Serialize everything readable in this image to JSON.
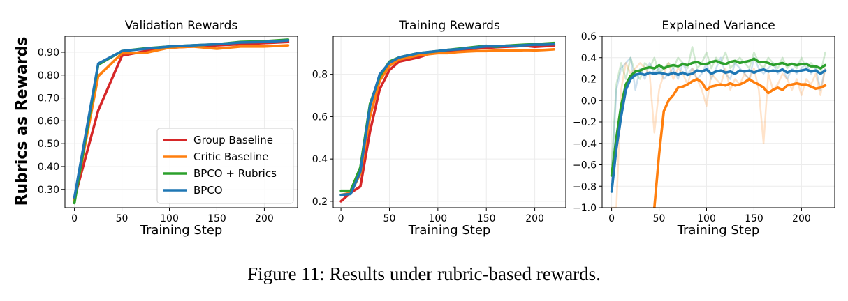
{
  "figure": {
    "caption": "Figure 11: Results under rubric-based rewards.",
    "row_ylabel": "Rubrics as Rewards"
  },
  "legend": {
    "placement": "lower-right",
    "entries": [
      {
        "name": "Group Baseline",
        "color": "#d62728"
      },
      {
        "name": "Critic Baseline",
        "color": "#ff7f0e"
      },
      {
        "name": "BPCO + Rubrics",
        "color": "#2ca02c"
      },
      {
        "name": "BPCO",
        "color": "#1f77b4"
      }
    ]
  },
  "chart_data": [
    {
      "type": "line",
      "title": "Validation Rewards",
      "xlabel": "Training Step",
      "ylabel": "",
      "xlim": [
        -10,
        235
      ],
      "ylim": [
        0.22,
        0.97
      ],
      "xticks": [
        0,
        50,
        100,
        150,
        200
      ],
      "yticks": [
        0.3,
        0.4,
        0.5,
        0.6,
        0.7,
        0.8,
        0.9
      ],
      "ytick_labels": [
        "0.30",
        "0.40",
        "0.50",
        "0.60",
        "0.70",
        "0.80",
        "0.90"
      ],
      "grid": true,
      "x": [
        0,
        25,
        50,
        75,
        100,
        125,
        150,
        175,
        200,
        225
      ],
      "series": [
        {
          "name": "Group Baseline",
          "color": "#d62728",
          "values": [
            0.26,
            0.645,
            0.885,
            0.905,
            0.92,
            0.925,
            0.93,
            0.935,
            0.94,
            0.945
          ]
        },
        {
          "name": "Critic Baseline",
          "color": "#ff7f0e",
          "values": [
            0.25,
            0.795,
            0.895,
            0.897,
            0.92,
            0.925,
            0.915,
            0.925,
            0.925,
            0.93
          ]
        },
        {
          "name": "BPCO + Rubrics",
          "color": "#2ca02c",
          "values": [
            0.24,
            0.845,
            0.905,
            0.917,
            0.925,
            0.93,
            0.935,
            0.945,
            0.948,
            0.955
          ]
        },
        {
          "name": "BPCO",
          "color": "#1f77b4",
          "values": [
            0.265,
            0.85,
            0.905,
            0.915,
            0.925,
            0.93,
            0.935,
            0.943,
            0.945,
            0.952
          ]
        }
      ]
    },
    {
      "type": "line",
      "title": "Training Rewards",
      "xlabel": "Training Step",
      "ylabel": "",
      "xlim": [
        -8,
        232
      ],
      "ylim": [
        0.17,
        0.98
      ],
      "xticks": [
        0,
        50,
        100,
        150,
        200
      ],
      "yticks": [
        0.2,
        0.4,
        0.6,
        0.8
      ],
      "ytick_labels": [
        "0.2",
        "0.4",
        "0.6",
        "0.8"
      ],
      "grid": true,
      "x": [
        0,
        10,
        20,
        30,
        40,
        50,
        60,
        70,
        80,
        90,
        100,
        110,
        120,
        130,
        140,
        150,
        160,
        170,
        180,
        190,
        200,
        210,
        220
      ],
      "series": [
        {
          "name": "Group Baseline",
          "color": "#d62728",
          "values": [
            0.2,
            0.24,
            0.27,
            0.53,
            0.73,
            0.82,
            0.86,
            0.87,
            0.88,
            0.895,
            0.905,
            0.91,
            0.915,
            0.918,
            0.922,
            0.925,
            0.928,
            0.93,
            0.932,
            0.935,
            0.93,
            0.933,
            0.935
          ]
        },
        {
          "name": "Critic Baseline",
          "color": "#ff7f0e",
          "values": [
            0.23,
            0.24,
            0.33,
            0.6,
            0.77,
            0.84,
            0.87,
            0.88,
            0.89,
            0.895,
            0.9,
            0.9,
            0.905,
            0.908,
            0.91,
            0.91,
            0.912,
            0.912,
            0.912,
            0.914,
            0.913,
            0.915,
            0.918
          ]
        },
        {
          "name": "BPCO + Rubrics",
          "color": "#2ca02c",
          "values": [
            0.25,
            0.25,
            0.36,
            0.66,
            0.79,
            0.86,
            0.88,
            0.89,
            0.9,
            0.905,
            0.91,
            0.915,
            0.92,
            0.925,
            0.93,
            0.935,
            0.93,
            0.935,
            0.938,
            0.94,
            0.942,
            0.945,
            0.948
          ]
        },
        {
          "name": "BPCO",
          "color": "#1f77b4",
          "values": [
            0.23,
            0.235,
            0.34,
            0.65,
            0.8,
            0.855,
            0.88,
            0.89,
            0.9,
            0.905,
            0.91,
            0.915,
            0.918,
            0.922,
            0.928,
            0.932,
            0.932,
            0.935,
            0.935,
            0.938,
            0.94,
            0.94,
            0.942
          ]
        }
      ]
    },
    {
      "type": "line",
      "title": "Explained Variance",
      "xlabel": "Training Step",
      "ylabel": "",
      "xlim": [
        -10,
        235
      ],
      "ylim": [
        -1.0,
        0.6
      ],
      "xticks": [
        0,
        50,
        100,
        150,
        200
      ],
      "yticks": [
        -1.0,
        -0.8,
        -0.6,
        -0.4,
        -0.2,
        0.0,
        0.2,
        0.4,
        0.6
      ],
      "ytick_labels": [
        "−1.0",
        "−0.8",
        "−0.6",
        "−0.4",
        "−0.2",
        "0.0",
        "0.2",
        "0.4",
        "0.6"
      ],
      "grid": true,
      "x": [
        0,
        5,
        10,
        15,
        20,
        25,
        30,
        35,
        40,
        45,
        50,
        55,
        60,
        65,
        70,
        75,
        80,
        85,
        90,
        95,
        100,
        105,
        110,
        115,
        120,
        125,
        130,
        135,
        140,
        145,
        150,
        155,
        160,
        165,
        170,
        175,
        180,
        185,
        190,
        195,
        200,
        205,
        210,
        215,
        220,
        225
      ],
      "series": [
        {
          "name": "BPCO + Rubrics",
          "color": "#2ca02c",
          "values": [
            -0.7,
            -0.35,
            -0.05,
            0.15,
            0.23,
            0.27,
            0.28,
            0.3,
            0.31,
            0.3,
            0.33,
            0.3,
            0.32,
            0.33,
            0.32,
            0.34,
            0.33,
            0.35,
            0.36,
            0.34,
            0.34,
            0.36,
            0.37,
            0.35,
            0.34,
            0.36,
            0.37,
            0.35,
            0.36,
            0.37,
            0.39,
            0.36,
            0.36,
            0.35,
            0.33,
            0.34,
            0.35,
            0.33,
            0.34,
            0.33,
            0.34,
            0.34,
            0.32,
            0.32,
            0.3,
            0.33
          ]
        },
        {
          "name": "BPCO",
          "color": "#1f77b4",
          "values": [
            -0.85,
            -0.45,
            -0.15,
            0.1,
            0.2,
            0.24,
            0.25,
            0.24,
            0.26,
            0.25,
            0.26,
            0.25,
            0.24,
            0.26,
            0.24,
            0.26,
            0.24,
            0.25,
            0.28,
            0.27,
            0.29,
            0.25,
            0.27,
            0.28,
            0.26,
            0.27,
            0.25,
            0.28,
            0.27,
            0.28,
            0.26,
            0.28,
            0.29,
            0.27,
            0.28,
            0.27,
            0.29,
            0.26,
            0.28,
            0.27,
            0.28,
            0.29,
            0.27,
            0.28,
            0.25,
            0.28
          ]
        },
        {
          "name": "Critic Baseline",
          "color": "#ff7f0e",
          "values": [
            null,
            null,
            null,
            null,
            null,
            null,
            null,
            null,
            null,
            -1.0,
            -0.5,
            -0.1,
            0.0,
            0.05,
            0.12,
            0.13,
            0.15,
            0.18,
            0.2,
            0.17,
            0.1,
            0.13,
            0.14,
            0.15,
            0.14,
            0.16,
            0.14,
            0.15,
            0.17,
            0.2,
            0.17,
            0.15,
            0.12,
            0.07,
            0.1,
            0.12,
            0.1,
            0.14,
            0.15,
            0.16,
            0.15,
            0.15,
            0.13,
            0.11,
            0.12,
            0.14
          ]
        }
      ],
      "faint_series": [
        {
          "name": "BPCO + Rubrics",
          "color": "#2ca02c",
          "values": [
            -0.6,
            0.15,
            0.35,
            0.2,
            0.4,
            0.25,
            0.2,
            0.35,
            0.3,
            0.4,
            0.25,
            0.3,
            0.35,
            0.3,
            0.4,
            0.35,
            0.3,
            0.5,
            0.3,
            0.35,
            0.45,
            0.3,
            0.4,
            0.35,
            0.45,
            0.3,
            0.35,
            0.4,
            0.35,
            0.3,
            0.45,
            0.35,
            0.3,
            0.4,
            0.35,
            0.3,
            0.4,
            0.3,
            0.35,
            0.3,
            0.4,
            0.3,
            0.35,
            0.3,
            0.25,
            0.45
          ]
        },
        {
          "name": "BPCO",
          "color": "#1f77b4",
          "values": [
            -0.75,
            0.1,
            0.3,
            0.35,
            0.4,
            0.1,
            0.3,
            0.2,
            0.35,
            0.25,
            0.3,
            0.2,
            0.25,
            0.3,
            0.2,
            0.35,
            0.25,
            0.3,
            0.2,
            0.25,
            0.35,
            0.2,
            0.3,
            0.4,
            0.25,
            0.2,
            0.35,
            0.3,
            0.25,
            0.2,
            0.4,
            0.3,
            0.25,
            0.3,
            0.35,
            0.25,
            0.3,
            0.2,
            0.3,
            0.25,
            0.3,
            0.35,
            0.25,
            0.3,
            0.1,
            0.3
          ]
        },
        {
          "name": "Critic Baseline",
          "color": "#ff7f0e",
          "values": [
            -1.0,
            -1.0,
            0.1,
            0.35,
            0.25,
            0.3,
            0.35,
            0.3,
            0.25,
            -0.3,
            0.1,
            0.25,
            0.35,
            0.2,
            0.3,
            0.25,
            0.15,
            0.3,
            0.2,
            0.1,
            -0.05,
            0.25,
            0.2,
            0.15,
            0.3,
            0.1,
            0.2,
            0.15,
            0.25,
            0.2,
            0.3,
            0.1,
            -0.4,
            0.25,
            0.1,
            0.15,
            0.25,
            0.2,
            0.1,
            0.2,
            0.05,
            0.2,
            0.15,
            0.25,
            0.05,
            0.3
          ]
        }
      ]
    }
  ]
}
